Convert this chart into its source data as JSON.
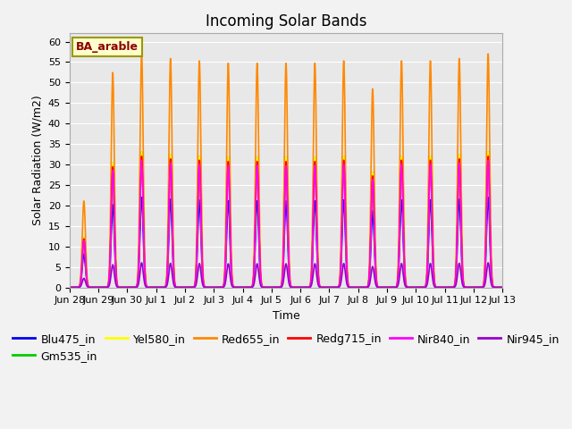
{
  "title": "Incoming Solar Bands",
  "xlabel": "Time",
  "ylabel": "Solar Radiation (W/m2)",
  "site_label": "BA_arable",
  "ylim": [
    0,
    62
  ],
  "yticks": [
    0,
    5,
    10,
    15,
    20,
    25,
    30,
    35,
    40,
    45,
    50,
    55,
    60
  ],
  "date_labels": [
    "Jun 28",
    "Jun 29",
    "Jun 30",
    "Jul 1",
    "Jul 2",
    "Jul 3",
    "Jul 4",
    "Jul 5",
    "Jul 6",
    "Jul 7",
    "Jul 8",
    "Jul 9",
    "Jul 10",
    "Jul 11",
    "Jul 12",
    "Jul 13"
  ],
  "series_order": [
    "Blu475_in",
    "Gm535_in",
    "Yel580_in",
    "Red655_in",
    "Redg715_in",
    "Nir840_in",
    "Nir945_in"
  ],
  "series": {
    "Blu475_in": {
      "color": "#0000ee",
      "lw": 1.2,
      "peak": 22.0
    },
    "Gm535_in": {
      "color": "#00cc00",
      "lw": 1.2,
      "peak": 33.0
    },
    "Yel580_in": {
      "color": "#ffff00",
      "lw": 1.2,
      "peak": 33.0
    },
    "Red655_in": {
      "color": "#ff8800",
      "lw": 1.2,
      "peak": 57.0
    },
    "Redg715_in": {
      "color": "#ff0000",
      "lw": 1.2,
      "peak": 32.0
    },
    "Nir840_in": {
      "color": "#ff00ff",
      "lw": 1.2,
      "peak": 31.0
    },
    "Nir945_in": {
      "color": "#9900cc",
      "lw": 1.2,
      "peak": 6.0
    }
  },
  "n_days": 15,
  "pts_per_day": 288,
  "sigma": 0.055,
  "day_multipliers": [
    0.37,
    0.92,
    1.0,
    0.98,
    0.97,
    0.96,
    0.96,
    0.96,
    0.96,
    0.97,
    0.85,
    0.97,
    0.97,
    0.98,
    1.0
  ],
  "background_color": "#e8e8e8",
  "fig_color": "#f2f2f2",
  "grid_color": "#ffffff",
  "title_fontsize": 12,
  "axis_label_fontsize": 9,
  "tick_fontsize": 8,
  "legend_fontsize": 9
}
